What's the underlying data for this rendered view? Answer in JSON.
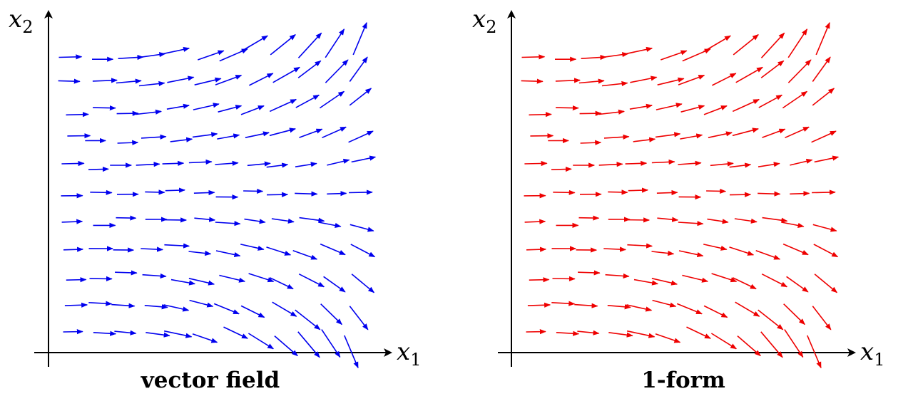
{
  "panels": [
    {
      "id": "vector-field",
      "caption": "vector field",
      "x_axis_label": "x",
      "x_axis_sub": "1",
      "y_axis_label": "x",
      "y_axis_sub": "2",
      "arrow_color": "#0000ee"
    },
    {
      "id": "one-form",
      "caption": "1-form",
      "x_axis_label": "x",
      "x_axis_sub": "1",
      "y_axis_label": "x",
      "y_axis_sub": "2",
      "arrow_color": "#ee0000"
    }
  ]
}
